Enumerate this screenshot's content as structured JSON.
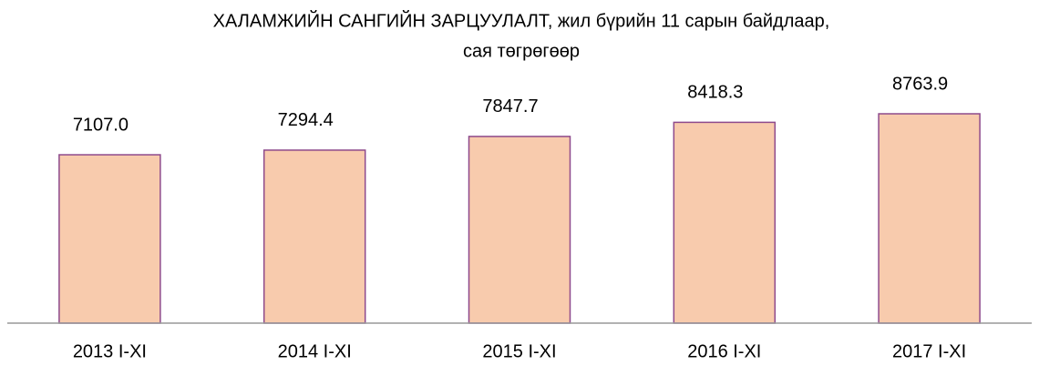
{
  "chart_data": {
    "type": "bar",
    "title": "ХАЛАМЖИЙН САНГИЙН ЗАРЦУУЛАЛТ, жил бүрийн 11 сарын байдлаар,",
    "subtitle": "сая төгрөгөөр",
    "categories": [
      "2013 I-XI",
      "2014 I-XI",
      "2015 I-XI",
      "2016 I-XI",
      "2017 I-XI"
    ],
    "values": [
      7107.0,
      7294.4,
      7847.7,
      8418.3,
      8763.9
    ],
    "value_labels": [
      "7107.0",
      "7294.4",
      "7847.7",
      "8418.3",
      "8763.9"
    ],
    "color": "#f8cbad",
    "edge_color": "#8e4a8c",
    "ylim": [
      300,
      9500
    ]
  }
}
